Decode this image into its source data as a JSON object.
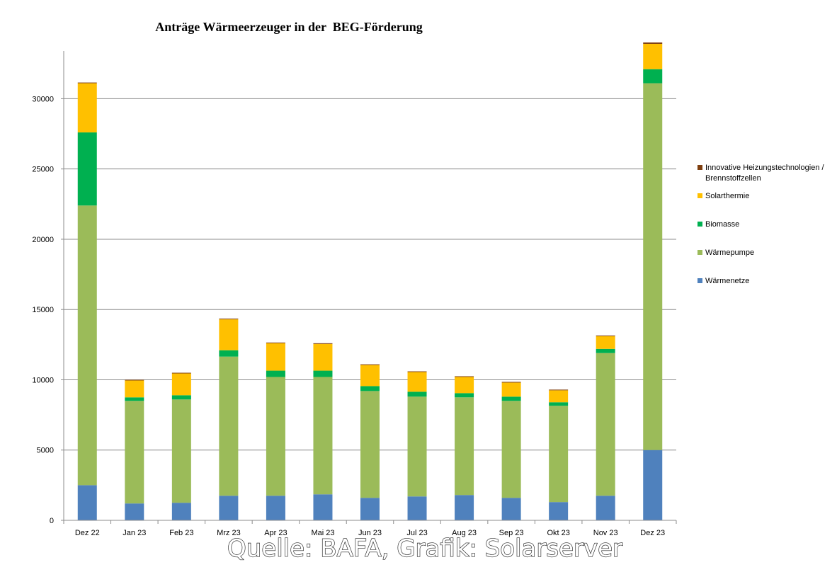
{
  "chart_data": {
    "type": "stacked-bar",
    "title": "Anträge Wärmeerzeuger in der  BEG-Förderung",
    "xlabel": "",
    "ylabel": "",
    "ylim": [
      0,
      34000
    ],
    "yticks": [
      0,
      5000,
      10000,
      15000,
      20000,
      25000,
      30000
    ],
    "grid": true,
    "legend_position": "right",
    "categories": [
      "Dez 22",
      "Jan 23",
      "Feb 23",
      "Mrz 23",
      "Apr 23",
      "Mai 23",
      "Jun 23",
      "Jul 23",
      "Aug 23",
      "Sep 23",
      "Okt 23",
      "Nov 23",
      "Dez 23"
    ],
    "series": [
      {
        "name": "Wärmenetze",
        "color": "#4f81bd",
        "values": [
          2500,
          1200,
          1250,
          1750,
          1750,
          1850,
          1600,
          1700,
          1800,
          1600,
          1300,
          1750,
          5000
        ]
      },
      {
        "name": "Wärmepumpe",
        "color": "#9bbb59",
        "values": [
          19900,
          7300,
          7350,
          9900,
          8450,
          8350,
          7600,
          7100,
          6950,
          6900,
          6850,
          10150,
          26100
        ]
      },
      {
        "name": "Biomasse",
        "color": "#00b050",
        "values": [
          5200,
          250,
          300,
          450,
          450,
          450,
          350,
          350,
          300,
          300,
          250,
          300,
          1000
        ]
      },
      {
        "name": "Solarthermie",
        "color": "#ffc000",
        "values": [
          3500,
          1200,
          1550,
          2200,
          1950,
          1900,
          1500,
          1400,
          1150,
          1000,
          850,
          900,
          1800
        ]
      },
      {
        "name": "Innovative Heizungstechnologien / Brennstoffzellen",
        "color": "#7f3f0f",
        "values": [
          50,
          50,
          50,
          50,
          50,
          50,
          50,
          50,
          50,
          50,
          50,
          50,
          100
        ]
      }
    ],
    "legend_order": [
      4,
      3,
      2,
      1,
      0
    ]
  },
  "source": "Quelle: BAFA, Grafik: Solarserver"
}
